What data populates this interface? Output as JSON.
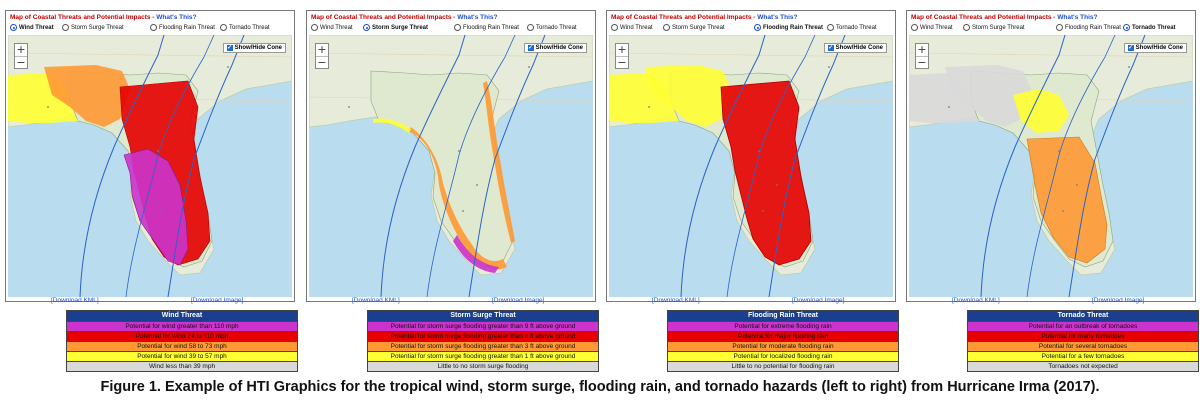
{
  "panel_title": "Map of Coastal Threats and Potential Impacts - ",
  "whats_this": "What's This?",
  "radio_labels": [
    "Wind Threat",
    "Storm Surge Threat",
    "Flooding Rain Threat",
    "Tornado Threat"
  ],
  "zoom_in": "+",
  "zoom_out": "−",
  "show_hide_cone": "Show/Hide Cone",
  "download_kml": "[Download KML]",
  "download_image": "[Download Image]",
  "colors": {
    "extreme": "#cc33cc",
    "high": "#e60000",
    "moderate": "#ff9933",
    "elevated": "#ffff33",
    "none": "#d9d9d9",
    "legend_header": "#1a3f8e",
    "link": "#1f4fd0",
    "title": "#c00000"
  },
  "panels": [
    {
      "selected": 0,
      "legend_title": "Wind Threat",
      "legend_rows": [
        "Potential for wind greater than 110 mph",
        "Potential for wind 74 to 110 mph",
        "Potential for wind 58 to 73 mph",
        "Potential for wind 39 to 57 mph",
        "Wind less than 39 mph"
      ]
    },
    {
      "selected": 1,
      "legend_title": "Storm Surge Threat",
      "legend_rows": [
        "Potential for storm surge flooding greater than 9 ft above ground",
        "Potential for storm surge flooding greater than 6 ft above ground",
        "Potential for storm surge flooding greater than 3 ft above ground",
        "Potential for storm surge flooding greater than 1 ft above ground",
        "Little to no storm surge flooding"
      ]
    },
    {
      "selected": 2,
      "legend_title": "Flooding Rain Threat",
      "legend_rows": [
        "Potential for extreme flooding rain",
        "Potential for major flooding rain",
        "Potential for moderate flooding rain",
        "Potential for localized flooding rain",
        "Little to no potential for flooding rain"
      ]
    },
    {
      "selected": 3,
      "legend_title": "Tornado Threat",
      "legend_rows": [
        "Potential for an outbreak of tornadoes",
        "Potential for many tornadoes",
        "Potential for several tornadoes",
        "Potential for a few tornadoes",
        "Tornadoes not expected"
      ]
    }
  ],
  "caption": "Figure 1. Example of HTI Graphics for the tropical wind, storm surge, flooding rain, and tornado hazards (left to right) from Hurricane Irma (2017)."
}
